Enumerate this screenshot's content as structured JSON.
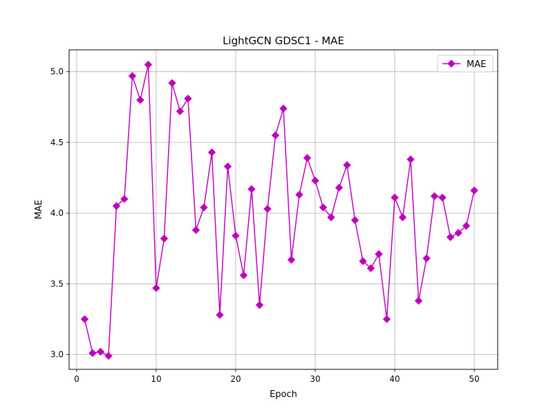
{
  "chart_data": {
    "type": "line",
    "title": "LightGCN GDSC1 - MAE",
    "xlabel": "Epoch",
    "ylabel": "MAE",
    "xlim": [
      -0.95,
      52.95
    ],
    "ylim": [
      2.895,
      5.155
    ],
    "xticks": [
      0,
      10,
      20,
      30,
      40,
      50
    ],
    "xtick_labels": [
      "0",
      "10",
      "20",
      "30",
      "40",
      "50"
    ],
    "yticks": [
      3.0,
      3.5,
      4.0,
      4.5,
      5.0
    ],
    "ytick_labels": [
      "3.0",
      "3.5",
      "4.0",
      "4.5",
      "5.0"
    ],
    "grid": true,
    "legend_position": "top-right",
    "x": [
      1,
      2,
      3,
      4,
      5,
      6,
      7,
      8,
      9,
      10,
      11,
      12,
      13,
      14,
      15,
      16,
      17,
      18,
      19,
      20,
      21,
      22,
      23,
      24,
      25,
      26,
      27,
      28,
      29,
      30,
      31,
      32,
      33,
      34,
      35,
      36,
      37,
      38,
      39,
      40,
      41,
      42,
      43,
      44,
      45,
      46,
      47,
      48,
      49,
      50
    ],
    "series": [
      {
        "name": "MAE",
        "color": "#bf00bf",
        "marker": "diamond",
        "values": [
          3.25,
          3.01,
          3.02,
          2.99,
          4.05,
          4.1,
          4.97,
          4.8,
          5.05,
          3.47,
          3.82,
          4.92,
          4.72,
          4.81,
          3.88,
          4.04,
          4.43,
          3.28,
          4.33,
          3.84,
          3.56,
          4.17,
          3.35,
          4.03,
          4.55,
          4.74,
          3.67,
          4.13,
          4.39,
          4.23,
          4.04,
          3.97,
          4.18,
          4.34,
          3.95,
          3.66,
          3.61,
          3.71,
          3.25,
          4.11,
          3.97,
          4.38,
          3.38,
          3.68,
          4.12,
          4.11,
          3.83,
          3.86,
          3.91,
          4.16
        ]
      }
    ]
  }
}
